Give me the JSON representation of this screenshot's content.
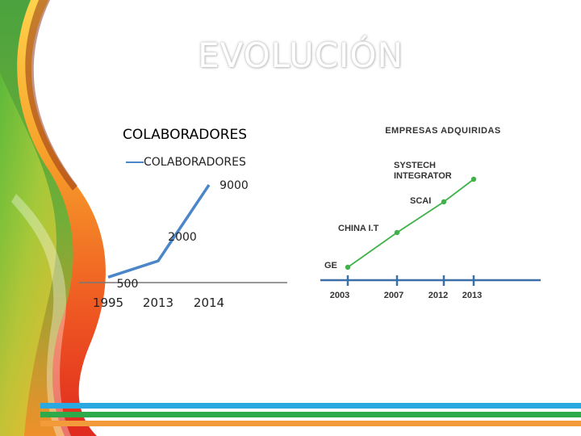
{
  "slide": {
    "title": "EVOLUCIÓN"
  },
  "colors": {
    "colaboradores_line": "#4a86c8",
    "empresas_line": "#3fb24a",
    "axis": "#777777",
    "stripe_blue": "#2aa9e0",
    "stripe_green": "#2eaa4a",
    "stripe_orange": "#f39a3b"
  },
  "chart_data": [
    {
      "type": "line",
      "title": "COLABORADORES",
      "categories": [
        "1995",
        "2013",
        "2014"
      ],
      "series": [
        {
          "name": "COLABORADORES",
          "values": [
            500,
            2000,
            9000
          ]
        }
      ],
      "data_labels": [
        "500",
        "2000",
        "9000"
      ],
      "legend": "top",
      "ylim": [
        0,
        9000
      ]
    },
    {
      "type": "line",
      "title": "EMPRESAS ADQUIRIDAS",
      "x": [
        2003,
        2007,
        2012,
        2013
      ],
      "tick_labels": [
        "2003",
        "2007",
        "2012",
        "2013"
      ],
      "series": [
        {
          "values": [
            1,
            2,
            3,
            4
          ]
        }
      ],
      "point_labels": [
        "GE",
        "CHINA I.T",
        "SCAI",
        "SYSTECH INTEGRATOR"
      ]
    }
  ]
}
